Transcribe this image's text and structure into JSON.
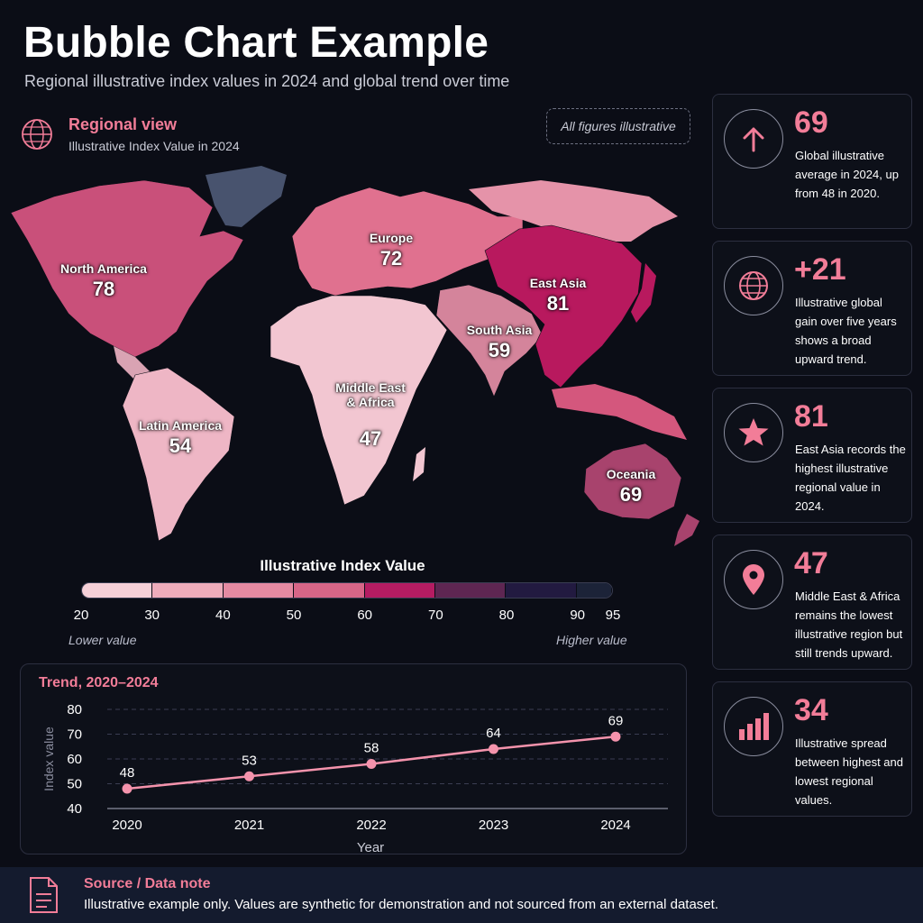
{
  "header": {
    "title": "Bubble Chart Example",
    "subtitle": "Regional illustrative index values in 2024 and global trend over time"
  },
  "map_panel": {
    "title": "Regional view",
    "subtitle": "Illustrative Index Value in 2024",
    "note": "All figures illustrative",
    "icon": "globe-icon"
  },
  "chart_data": [
    {
      "type": "choropleth",
      "title": "Regional view",
      "subtitle": "Illustrative Index Value in 2024",
      "regions": [
        {
          "name": "North America",
          "value": 78
        },
        {
          "name": "Europe",
          "value": 72
        },
        {
          "name": "East Asia",
          "value": 81
        },
        {
          "name": "South Asia",
          "value": 59
        },
        {
          "name": "Middle East\n& Africa",
          "value": 47
        },
        {
          "name": "Latin America",
          "value": 54
        },
        {
          "name": "Oceania",
          "value": 69
        }
      ],
      "legend": {
        "title": "Illustrative Index Value",
        "ticks": [
          20,
          30,
          40,
          50,
          60,
          70,
          80,
          90,
          95
        ],
        "colors": [
          "#f6d0d8",
          "#eeacbb",
          "#e58aa2",
          "#d76587",
          "#b51c62",
          "#5e2652",
          "#221a40",
          "#1c2338"
        ],
        "low_label": "Lower value",
        "high_label": "Higher value"
      }
    },
    {
      "type": "line",
      "title": "Trend, 2020–2024",
      "x": [
        2020,
        2021,
        2022,
        2023,
        2024
      ],
      "values": [
        48,
        53,
        58,
        64,
        69
      ],
      "xlabel": "Year",
      "ylabel": "Index value",
      "ylim": [
        40,
        80
      ],
      "yticks": [
        40,
        50,
        60,
        70,
        80
      ],
      "grid": true,
      "color": "#f493ac"
    }
  ],
  "cards": [
    {
      "icon": "arrow-up-icon",
      "value": "69",
      "text": "Global illustrative average in 2024, up from 48 in 2020."
    },
    {
      "icon": "globe-icon",
      "value": "+21",
      "text": "Illustrative global gain over five years shows a broad upward trend."
    },
    {
      "icon": "star-icon",
      "value": "81",
      "text": "East Asia records the highest illustrative regional value in 2024."
    },
    {
      "icon": "location-pin-icon",
      "value": "47",
      "text": "Middle East & Africa remains the lowest illustrative region but still trends upward."
    },
    {
      "icon": "bar-chart-icon",
      "value": "34",
      "text": "Illustrative spread between highest and lowest regional values."
    }
  ],
  "source": {
    "title": "Source / Data note",
    "text": "Illustrative example only. Values are synthetic for demonstration and not sourced from an external dataset.",
    "icon": "document-icon"
  },
  "colors": {
    "accent": "#f27d98",
    "background": "#0b0d16",
    "panel_border": "#2c2f40"
  }
}
